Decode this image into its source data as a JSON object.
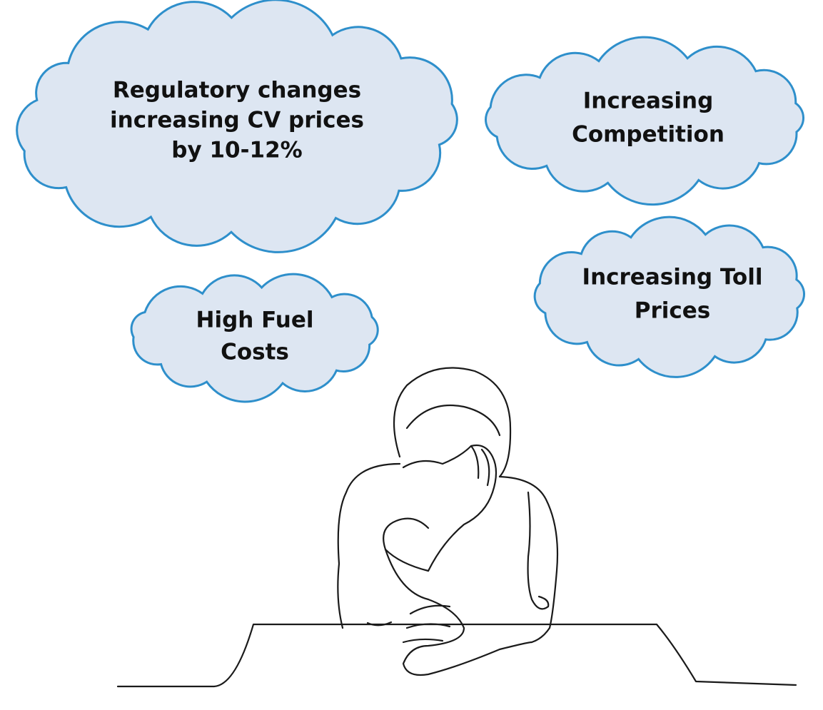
{
  "clouds": [
    {
      "lines": [
        "Regulatory changes",
        "increasing CV prices",
        "by 10-12%"
      ]
    },
    {
      "lines": [
        "Increasing",
        "Competition"
      ]
    },
    {
      "lines": [
        "Increasing Toll",
        "Prices"
      ]
    },
    {
      "lines": [
        "High Fuel",
        "Costs"
      ]
    }
  ]
}
